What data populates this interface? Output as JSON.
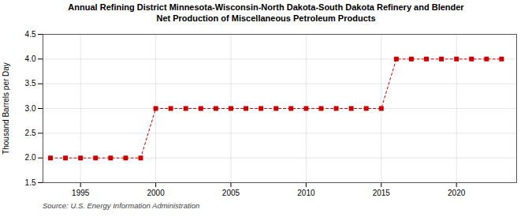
{
  "chart_data": {
    "type": "line",
    "title": "Annual Refining District Minnesota-Wisconsin-North Dakota-South Dakota Refinery and Blender\nNet Production of Miscellaneous Petroleum Products",
    "ylabel": "Thousand Barrels per Day",
    "annotations": [
      "Source: U.S. Energy Information Administration"
    ],
    "x": [
      1993,
      1994,
      1995,
      1996,
      1997,
      1998,
      1999,
      2000,
      2001,
      2002,
      2003,
      2004,
      2005,
      2006,
      2007,
      2008,
      2009,
      2010,
      2011,
      2012,
      2013,
      2014,
      2015,
      2016,
      2017,
      2018,
      2019,
      2020,
      2021,
      2022,
      2023
    ],
    "values": [
      2.0,
      2.0,
      2.0,
      2.0,
      2.0,
      2.0,
      2.0,
      3.0,
      3.0,
      3.0,
      3.0,
      3.0,
      3.0,
      3.0,
      3.0,
      3.0,
      3.0,
      3.0,
      3.0,
      3.0,
      3.0,
      3.0,
      3.0,
      4.0,
      4.0,
      4.0,
      4.0,
      4.0,
      4.0,
      4.0,
      4.0
    ],
    "color": "#cc0000",
    "marker": "square",
    "line_style": "dashed",
    "xlim": [
      1992.5,
      2024
    ],
    "xticks": [
      1995,
      2000,
      2005,
      2010,
      2015,
      2020
    ],
    "ylim": [
      1.5,
      4.5
    ],
    "yticks": [
      1.5,
      {
        "value": 2.0,
        "label": "2.0"
      },
      2.5,
      {
        "value": 3.0,
        "label": "3.0"
      },
      3.5,
      {
        "value": 4.0,
        "label": "4.0"
      },
      4.5
    ],
    "grid": true
  }
}
